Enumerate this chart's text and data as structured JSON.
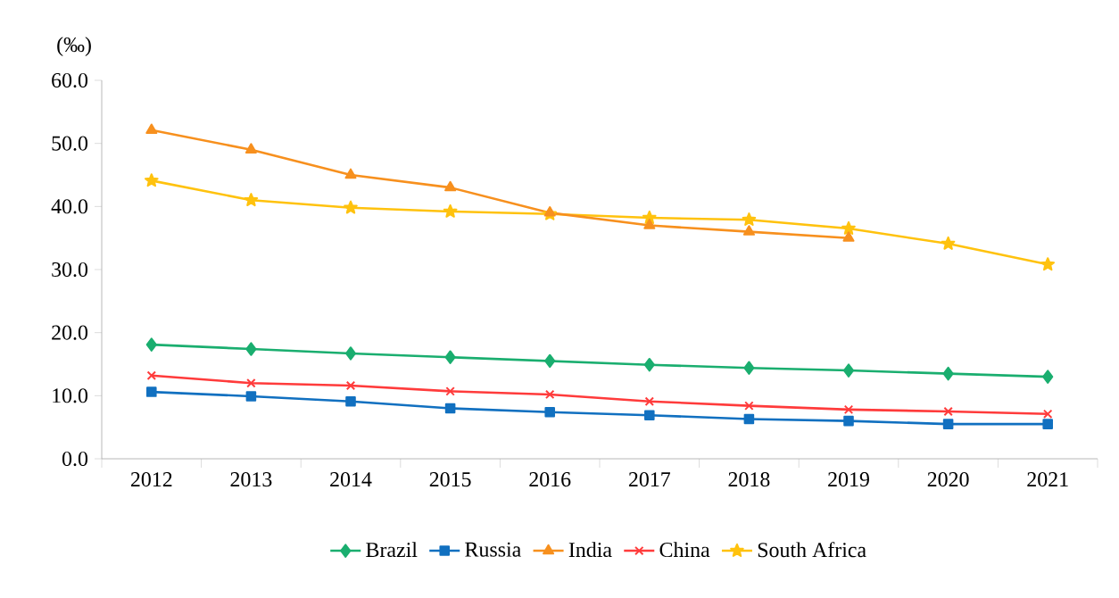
{
  "chart_data": {
    "type": "line",
    "ylabel": "(‰)",
    "categories": [
      "2012",
      "2013",
      "2014",
      "2015",
      "2016",
      "2017",
      "2018",
      "2019",
      "2020",
      "2021"
    ],
    "series": [
      {
        "name": "Brazil",
        "color": "#1aae6f",
        "marker": "diamond",
        "values": [
          18.1,
          17.4,
          16.7,
          16.1,
          15.5,
          14.9,
          14.4,
          14.0,
          13.5,
          13.0
        ]
      },
      {
        "name": "Russia",
        "color": "#1170c0",
        "marker": "square",
        "values": [
          10.6,
          9.9,
          9.1,
          8.0,
          7.4,
          6.9,
          6.3,
          6.0,
          5.5,
          5.5
        ]
      },
      {
        "name": "India",
        "color": "#f7901e",
        "marker": "triangle",
        "values": [
          52.1,
          49.0,
          45.0,
          43.0,
          39.0,
          37.0,
          36.0,
          35.0,
          null,
          null
        ]
      },
      {
        "name": "China",
        "color": "#ff3b3b",
        "marker": "cross",
        "values": [
          13.2,
          12.0,
          11.6,
          10.7,
          10.2,
          9.1,
          8.4,
          7.8,
          7.5,
          7.1
        ]
      },
      {
        "name": "South Africa",
        "color": "#ffc20e",
        "marker": "star",
        "values": [
          44.1,
          41.0,
          39.8,
          39.2,
          38.8,
          38.2,
          37.9,
          36.5,
          34.1,
          30.8
        ]
      }
    ],
    "ylim": [
      0,
      60
    ],
    "yticks": [
      {
        "value": 0,
        "label": "0.0"
      },
      {
        "value": 10,
        "label": "10.0"
      },
      {
        "value": 20,
        "label": "20.0"
      },
      {
        "value": 30,
        "label": "30.0"
      },
      {
        "value": 40,
        "label": "40.0"
      },
      {
        "value": 50,
        "label": "50.0"
      },
      {
        "value": 60,
        "label": "60.0"
      }
    ],
    "grid": false,
    "legend": "bottom",
    "line_style": "solid"
  }
}
